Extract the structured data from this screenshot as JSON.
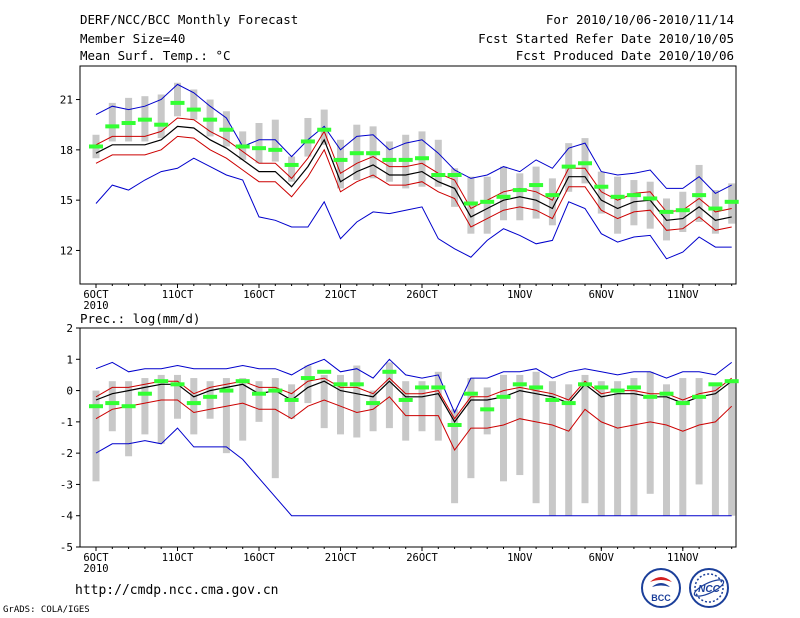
{
  "header": {
    "title": "DERF/NCC/BCC Monthly Forecast",
    "member_size": "Member Size=40",
    "var_label": "Mean Surf. Temp.: °C",
    "period": "For 2010/10/06-2010/11/14",
    "started": "Fcst Started Refer Date 2010/10/05",
    "produced": "Fcst Produced Date 2010/10/06"
  },
  "footer": {
    "url": "http://cmdp.ncc.cma.gov.cn",
    "credit": "GrADS: COLA/IGES",
    "logo_left_text": "BCC",
    "logo_right_text": "NCC"
  },
  "colors": {
    "box": "#c8c8c8",
    "median": "#33ff33",
    "mean": "#000000",
    "spread": "#cc0000",
    "extreme": "#0000cc",
    "frame": "#000000"
  },
  "chart_data": [
    {
      "type": "boxplot+line",
      "ylabel": "Mean Surf. Temp.: °C",
      "ylim": [
        10,
        23
      ],
      "yticks": [
        12,
        15,
        18,
        21
      ],
      "x_tick_labels": [
        "6OCT",
        "11OCT",
        "16OCT",
        "21OCT",
        "26OCT",
        "1NOV",
        "6NOV",
        "11NOV"
      ],
      "x_tick_days": [
        1,
        6,
        11,
        16,
        21,
        27,
        32,
        37
      ],
      "x_year_label": "2010",
      "days": 40,
      "box_low": [
        17.5,
        18.5,
        18.5,
        18.5,
        18.7,
        20.0,
        19.8,
        18.8,
        18.2,
        17.4,
        17.2,
        17.3,
        16.1,
        17.6,
        18.3,
        15.7,
        16.2,
        16.3,
        16.1,
        15.7,
        15.8,
        15.8,
        14.6,
        13.0,
        13.0,
        13.8,
        13.8,
        13.9,
        13.5,
        15.5,
        16.0,
        14.2,
        13.0,
        13.5,
        13.3,
        12.6,
        13.1,
        13.7,
        13.0,
        13.6
      ],
      "box_high": [
        18.9,
        20.8,
        21.1,
        21.2,
        21.3,
        22.0,
        21.6,
        21.0,
        20.3,
        19.1,
        19.6,
        19.8,
        17.6,
        19.9,
        20.4,
        18.6,
        19.5,
        19.4,
        18.5,
        18.9,
        19.1,
        18.6,
        16.9,
        16.4,
        16.4,
        17.0,
        16.6,
        17.0,
        16.3,
        18.4,
        18.7,
        16.7,
        16.4,
        16.2,
        16.1,
        15.1,
        15.5,
        17.1,
        15.6,
        16.0
      ],
      "median": [
        18.2,
        19.4,
        19.6,
        19.8,
        19.5,
        20.8,
        20.4,
        19.8,
        19.2,
        18.2,
        18.1,
        18.0,
        17.1,
        18.5,
        19.2,
        17.4,
        17.8,
        17.8,
        17.4,
        17.4,
        17.5,
        16.5,
        16.5,
        14.8,
        14.9,
        15.2,
        15.6,
        15.9,
        15.3,
        17.0,
        17.2,
        15.8,
        15.2,
        15.3,
        15.1,
        14.3,
        14.4,
        15.3,
        14.5,
        14.9
      ],
      "mean": [
        17.8,
        18.3,
        18.3,
        18.3,
        18.6,
        19.4,
        19.3,
        18.6,
        18.1,
        17.4,
        16.7,
        16.7,
        15.8,
        17.0,
        18.6,
        16.1,
        16.7,
        17.1,
        16.5,
        16.5,
        16.7,
        16.1,
        15.7,
        14.0,
        14.5,
        15.0,
        15.2,
        15.0,
        14.5,
        16.4,
        16.4,
        15.0,
        14.5,
        14.9,
        15.0,
        13.8,
        13.9,
        14.6,
        13.8,
        14.0
      ],
      "spread_high": [
        18.3,
        18.8,
        18.8,
        18.8,
        19.1,
        19.9,
        19.8,
        19.1,
        18.6,
        17.9,
        17.2,
        17.2,
        16.3,
        17.5,
        19.1,
        16.6,
        17.2,
        17.6,
        17.0,
        17.0,
        17.2,
        16.6,
        16.2,
        14.5,
        15.0,
        15.5,
        15.7,
        15.5,
        15.0,
        16.9,
        16.9,
        15.5,
        15.0,
        15.4,
        15.5,
        14.3,
        14.4,
        15.1,
        14.3,
        14.5
      ],
      "spread_low": [
        17.2,
        17.7,
        17.7,
        17.7,
        18.0,
        18.8,
        18.7,
        18.0,
        17.5,
        16.8,
        16.1,
        16.1,
        15.2,
        16.4,
        18.0,
        15.5,
        16.1,
        16.5,
        15.9,
        15.9,
        16.1,
        15.5,
        15.1,
        13.4,
        13.9,
        14.4,
        14.6,
        14.4,
        13.9,
        15.8,
        15.8,
        14.4,
        13.9,
        14.3,
        14.4,
        13.2,
        13.3,
        14.0,
        13.2,
        13.4
      ],
      "max": [
        20.1,
        20.6,
        20.4,
        20.6,
        21.0,
        21.9,
        21.4,
        20.6,
        19.9,
        18.2,
        18.6,
        18.6,
        17.6,
        18.6,
        19.4,
        18.0,
        18.8,
        18.9,
        18.0,
        18.4,
        18.6,
        17.8,
        16.8,
        16.3,
        16.5,
        17.0,
        16.7,
        17.4,
        16.9,
        18.1,
        18.4,
        16.7,
        16.5,
        16.6,
        16.8,
        15.7,
        15.7,
        16.4,
        15.4,
        15.9
      ],
      "min": [
        14.8,
        15.9,
        15.6,
        16.2,
        16.7,
        16.9,
        17.5,
        17.0,
        16.5,
        16.2,
        14.0,
        13.8,
        13.4,
        13.4,
        14.9,
        12.7,
        13.7,
        14.3,
        14.2,
        14.4,
        14.6,
        12.7,
        12.1,
        11.6,
        12.6,
        13.3,
        12.9,
        12.4,
        12.6,
        14.9,
        14.5,
        13.0,
        12.5,
        12.8,
        12.9,
        11.5,
        11.9,
        12.8,
        12.2,
        12.2
      ]
    },
    {
      "type": "boxplot+line",
      "ylabel": "Prec.: log(mm/d)",
      "ylim": [
        -5,
        2
      ],
      "yticks": [
        -5,
        -4,
        -3,
        -2,
        -1,
        0,
        1,
        2
      ],
      "x_tick_labels": [
        "6OCT",
        "11OCT",
        "16OCT",
        "21OCT",
        "26OCT",
        "1NOV",
        "6NOV",
        "11NOV"
      ],
      "x_tick_days": [
        1,
        6,
        11,
        16,
        21,
        27,
        32,
        37
      ],
      "x_year_label": "2010",
      "days": 40,
      "box_low": [
        -2.9,
        -1.3,
        -2.1,
        -1.4,
        -1.7,
        -0.9,
        -1.4,
        -0.9,
        -2.0,
        -1.6,
        -1.0,
        -2.8,
        -0.9,
        -0.4,
        -1.2,
        -1.4,
        -1.5,
        -1.3,
        -1.2,
        -1.6,
        -1.3,
        -1.6,
        -3.6,
        -2.8,
        -1.4,
        -2.9,
        -2.7,
        -3.6,
        -4.0,
        -4.0,
        -3.6,
        -4.0,
        -4.0,
        -4.0,
        -3.3,
        -4.0,
        -4.0,
        -3.0,
        -4.0,
        -4.0
      ],
      "box_high": [
        0.0,
        0.3,
        0.3,
        0.4,
        0.5,
        0.5,
        0.4,
        0.3,
        0.4,
        0.4,
        0.3,
        0.4,
        0.2,
        0.8,
        0.5,
        0.5,
        0.8,
        0.0,
        0.9,
        0.3,
        0.3,
        0.6,
        -0.6,
        0.4,
        0.1,
        0.5,
        0.5,
        0.6,
        0.3,
        0.2,
        0.5,
        0.3,
        0.3,
        0.4,
        0.6,
        0.2,
        0.4,
        0.4,
        0.2,
        0.3
      ],
      "median": [
        -0.5,
        -0.4,
        -0.5,
        -0.1,
        0.3,
        0.2,
        -0.4,
        -0.2,
        0.0,
        0.3,
        -0.1,
        0.0,
        -0.3,
        0.4,
        0.6,
        0.2,
        0.2,
        -0.4,
        0.6,
        -0.3,
        0.1,
        0.1,
        -1.1,
        -0.1,
        -0.6,
        -0.2,
        0.2,
        0.1,
        -0.3,
        -0.4,
        0.2,
        0.1,
        0.0,
        0.1,
        -0.2,
        -0.1,
        -0.4,
        -0.2,
        0.2,
        0.3
      ],
      "mean": [
        -0.3,
        -0.1,
        0.0,
        0.1,
        0.2,
        0.2,
        -0.2,
        0.0,
        0.1,
        0.2,
        -0.1,
        0.0,
        -0.3,
        0.1,
        0.3,
        0.0,
        -0.1,
        -0.2,
        0.3,
        -0.2,
        -0.2,
        -0.1,
        -1.0,
        -0.3,
        -0.3,
        -0.2,
        0.0,
        -0.1,
        -0.2,
        -0.4,
        0.2,
        -0.2,
        -0.1,
        -0.1,
        -0.2,
        -0.2,
        -0.4,
        -0.2,
        -0.1,
        0.3
      ],
      "spread_high": [
        -0.2,
        0.1,
        0.1,
        0.2,
        0.3,
        0.3,
        -0.1,
        0.1,
        0.2,
        0.3,
        0.1,
        0.1,
        -0.1,
        0.3,
        0.4,
        0.1,
        0.1,
        -0.1,
        0.4,
        -0.1,
        -0.1,
        0.0,
        -0.9,
        -0.2,
        -0.2,
        0.0,
        0.1,
        0.0,
        -0.1,
        -0.3,
        0.3,
        -0.1,
        0.0,
        0.0,
        -0.1,
        -0.1,
        -0.3,
        -0.1,
        0.0,
        0.4
      ],
      "spread_low": [
        -0.9,
        -0.6,
        -0.5,
        -0.4,
        -0.3,
        -0.3,
        -0.7,
        -0.6,
        -0.5,
        -0.4,
        -0.6,
        -0.6,
        -0.9,
        -0.5,
        -0.3,
        -0.5,
        -0.7,
        -0.6,
        -0.2,
        -0.8,
        -0.8,
        -0.8,
        -1.9,
        -1.2,
        -1.2,
        -1.1,
        -0.9,
        -1.0,
        -1.1,
        -1.3,
        -0.6,
        -1.0,
        -1.2,
        -1.1,
        -1.0,
        -1.1,
        -1.3,
        -1.1,
        -1.0,
        -0.5
      ],
      "max": [
        0.7,
        0.9,
        0.6,
        0.7,
        0.7,
        0.8,
        0.7,
        0.7,
        0.7,
        0.8,
        0.7,
        0.7,
        0.5,
        0.8,
        1.0,
        0.6,
        0.7,
        0.4,
        1.0,
        0.5,
        0.4,
        0.5,
        -0.7,
        0.4,
        0.4,
        0.6,
        0.6,
        0.7,
        0.4,
        0.6,
        0.7,
        0.6,
        0.5,
        0.6,
        0.6,
        0.4,
        0.6,
        0.6,
        0.5,
        0.9
      ],
      "min": [
        -2.0,
        -1.7,
        -1.7,
        -1.6,
        -1.7,
        -1.2,
        -1.8,
        -1.8,
        -1.8,
        -2.2,
        -2.8,
        -3.4,
        -4.0,
        -4.0,
        -4.0,
        -4.0,
        -4.0,
        -4.0,
        -4.0,
        -4.0,
        -4.0,
        -4.0,
        -4.0,
        -4.0,
        -4.0,
        -4.0,
        -4.0,
        -4.0,
        -4.0,
        -4.0,
        -4.0,
        -4.0,
        -4.0,
        -4.0,
        -4.0,
        -4.0,
        -4.0,
        -4.0,
        -4.0,
        -4.0
      ]
    }
  ]
}
